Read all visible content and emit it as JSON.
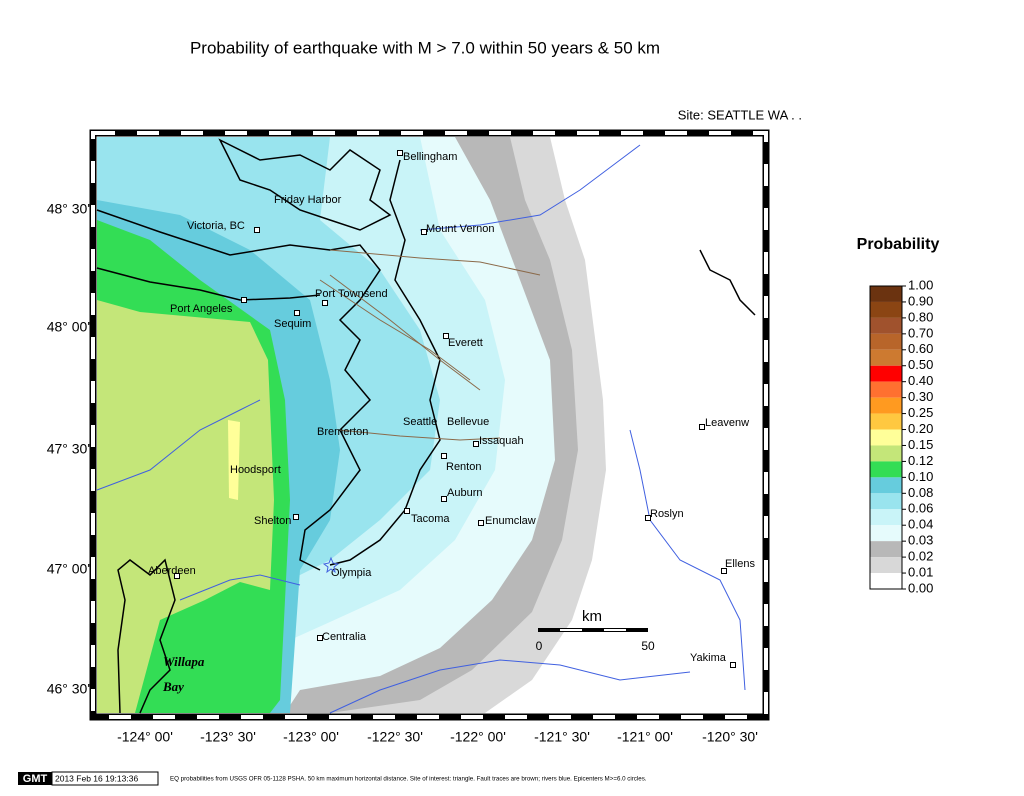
{
  "header": {
    "title": "Probability of earthquake with M > 7.0 within 50 years & 50 km",
    "site": "Site: SEATTLE  WA . ."
  },
  "map": {
    "lat_labels": [
      "48° 30'",
      "48° 00'",
      "47° 30'",
      "47° 00'",
      "46° 30'"
    ],
    "lon_labels": [
      "-124° 00'",
      "-123° 30'",
      "-123° 00'",
      "-122° 30'",
      "-122° 00'",
      "-121° 30'",
      "-121° 00'",
      "-120° 30'"
    ],
    "places": [
      "Bellingham",
      "Friday Harbor",
      "Victoria, BC",
      "Mount Vernon",
      "Port Townsend",
      "Port Angeles",
      "Sequim",
      "Everett",
      "Seattle",
      "Bellevue",
      "Bremerton",
      "Issaquah",
      "Renton",
      "Hoodsport",
      "Auburn",
      "Shelton",
      "Tacoma",
      "Enumclaw",
      "Aberdeen",
      "Olympia",
      "Centralia",
      "Willapa",
      "Bay",
      "Leavenw",
      "Roslyn",
      "Ellens",
      "Yakima"
    ],
    "scale": {
      "unit": "km",
      "start": "0",
      "end": "50"
    }
  },
  "legend": {
    "title": "Probability",
    "labels": [
      "1.00",
      "0.90",
      "0.80",
      "0.70",
      "0.60",
      "0.50",
      "0.40",
      "0.30",
      "0.25",
      "0.20",
      "0.15",
      "0.12",
      "0.10",
      "0.08",
      "0.06",
      "0.04",
      "0.03",
      "0.02",
      "0.01",
      "0.00"
    ],
    "colors": [
      "#6b3310",
      "#8b4513",
      "#a0522d",
      "#b8652a",
      "#cd7a30",
      "#ff0000",
      "#ff7030",
      "#ff9a20",
      "#ffc840",
      "#ffff99",
      "#c4e679",
      "#33dd55",
      "#66ccdd",
      "#99e4ee",
      "#c9f4f8",
      "#e6fbfc",
      "#b8b8b8",
      "#d8d8d8",
      "#ffffff"
    ]
  },
  "footer": {
    "logo": "GMT",
    "timestamp": "2013 Feb 16 19:13:36",
    "caption": "EQ probabilities from USGS OFR 05-1128 PSHA. 50 km maximum horizontal distance. Site of interest: triangle. Fault traces are brown; rivers blue. Epicenters M>=6.0 circles."
  }
}
